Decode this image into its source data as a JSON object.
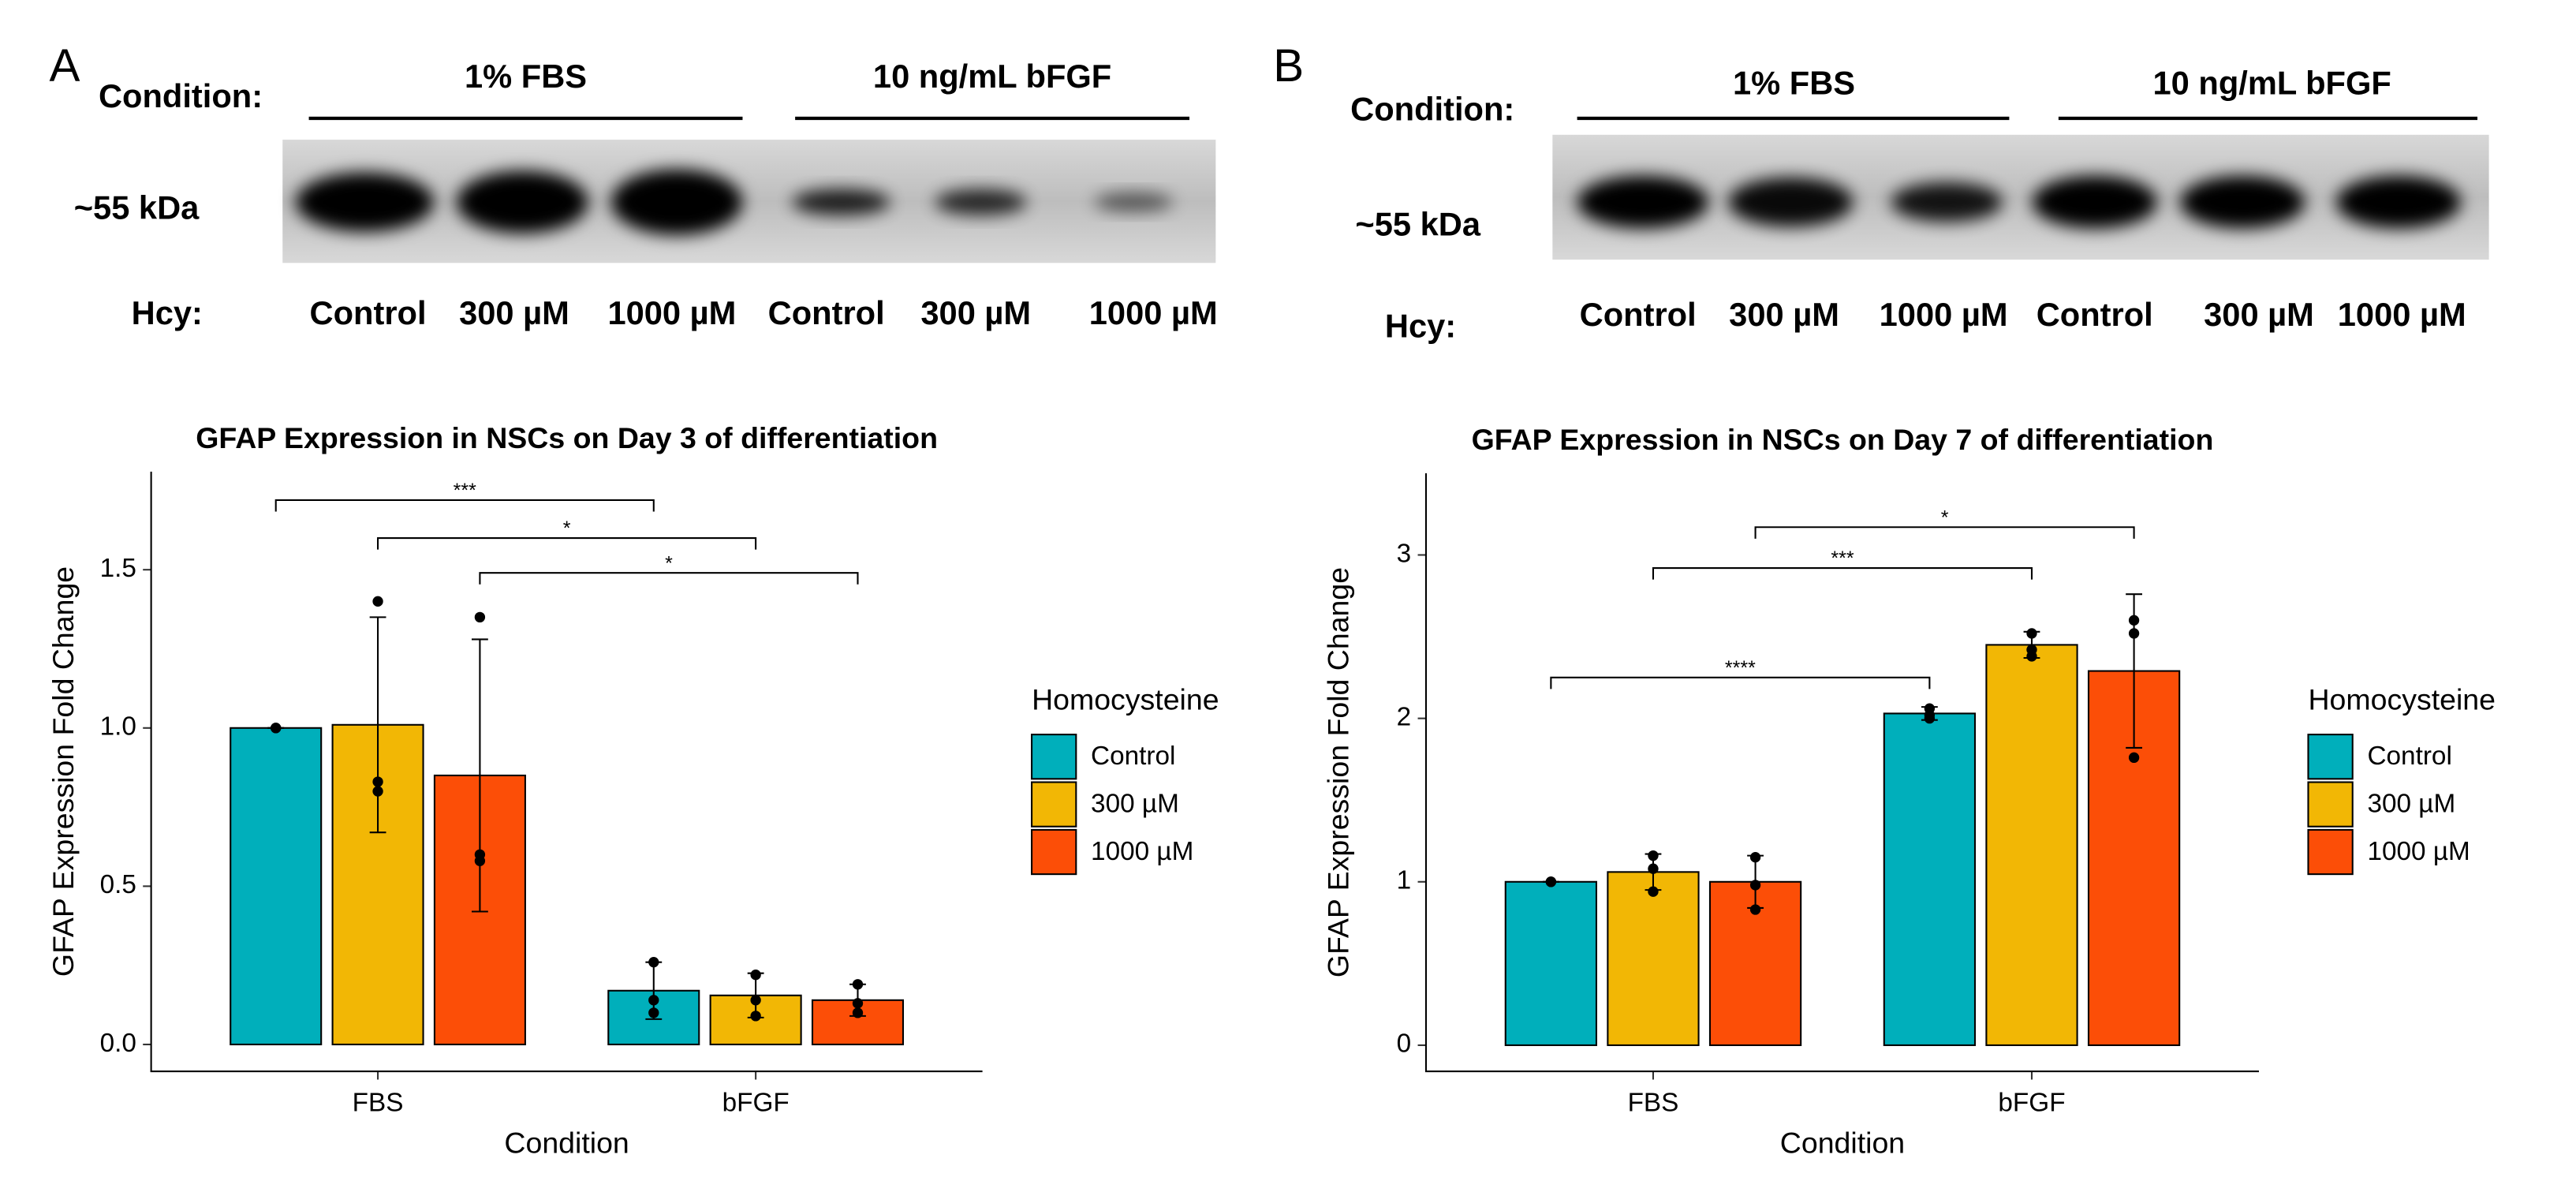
{
  "blots": [
    {
      "panel": "A",
      "condition_label": "Condition:",
      "groups": [
        "1% FBS",
        "10 ng/mL bFGF"
      ],
      "size_label": "~55 kDa",
      "hcy_label": "Hcy:",
      "lanes": [
        "Control",
        "300 µM",
        "1000 µM",
        "Control",
        "300 µM",
        "1000 µM"
      ]
    },
    {
      "panel": "B",
      "condition_label": "Condition:",
      "groups": [
        "1% FBS",
        "10 ng/mL bFGF"
      ],
      "size_label": "~55 kDa",
      "hcy_label": "Hcy:",
      "lanes": [
        "Control",
        "300 µM",
        "1000 µM",
        "Control",
        "300 µM",
        "1000 µM"
      ]
    }
  ],
  "chart_data": [
    {
      "type": "bar",
      "title": "GFAP Expression in NSCs on Day 3 of differentiation",
      "xlabel": "Condition",
      "ylabel": "GFAP Expression Fold Change",
      "categories": [
        "FBS",
        "bFGF"
      ],
      "legend_title": "Homocysteine",
      "legend": "right",
      "series": [
        {
          "name": "Control",
          "color": "#00AFBB",
          "values": [
            1.0,
            0.17
          ],
          "errors": [
            0,
            0.09
          ],
          "points": [
            [
              1.0,
              1.0,
              1.0
            ],
            [
              0.26,
              0.14,
              0.1
            ]
          ]
        },
        {
          "name": "300 µM",
          "color": "#F2B705",
          "values": [
            1.01,
            0.155
          ],
          "errors": [
            0.34,
            0.07
          ],
          "points": [
            [
              1.4,
              0.83,
              0.8
            ],
            [
              0.22,
              0.14,
              0.09
            ]
          ]
        },
        {
          "name": "1000 µM",
          "color": "#FC4E07",
          "values": [
            0.85,
            0.14
          ],
          "errors": [
            0.43,
            0.05
          ],
          "points": [
            [
              1.35,
              0.6,
              0.58
            ],
            [
              0.19,
              0.13,
              0.1
            ]
          ]
        }
      ],
      "annotations": [
        {
          "label": "***",
          "y": 1.72
        },
        {
          "label": "*",
          "y": 1.6
        },
        {
          "label": "*",
          "y": 1.49
        }
      ],
      "ylim": [
        -0.085,
        1.81
      ],
      "yticks": [
        {
          "value": 0,
          "label": "0.0"
        },
        0.5,
        {
          "value": 1,
          "label": "1.0"
        },
        1.5
      ]
    },
    {
      "type": "bar",
      "title": "GFAP Expression in NSCs on Day 7 of differentiation",
      "xlabel": "Condition",
      "ylabel": "GFAP Expression Fold Change",
      "categories": [
        "FBS",
        "bFGF"
      ],
      "legend_title": "Homocysteine",
      "legend": "right",
      "series": [
        {
          "name": "Control",
          "color": "#00AFBB",
          "values": [
            1.0,
            2.03
          ],
          "errors": [
            0,
            0.04
          ],
          "points": [
            [
              1.0,
              1.0,
              1.0
            ],
            [
              2.06,
              2.02,
              2.0
            ]
          ]
        },
        {
          "name": "300 µM",
          "color": "#F2B705",
          "values": [
            1.06,
            2.45
          ],
          "errors": [
            0.11,
            0.08
          ],
          "points": [
            [
              1.16,
              1.08,
              0.94
            ],
            [
              2.52,
              2.42,
              2.38
            ]
          ]
        },
        {
          "name": "1000 µM",
          "color": "#FC4E07",
          "values": [
            1.0,
            2.29
          ],
          "errors": [
            0.16,
            0.47
          ],
          "points": [
            [
              1.15,
              0.98,
              0.83
            ],
            [
              2.6,
              2.52,
              1.76
            ]
          ]
        }
      ],
      "annotations": [
        {
          "label": "****",
          "y": 2.25
        },
        {
          "label": "***",
          "y": 2.92
        },
        {
          "label": "*",
          "y": 3.17
        }
      ],
      "ylim": [
        -0.16,
        3.5
      ],
      "yticks": [
        0,
        1,
        2,
        3
      ]
    }
  ]
}
